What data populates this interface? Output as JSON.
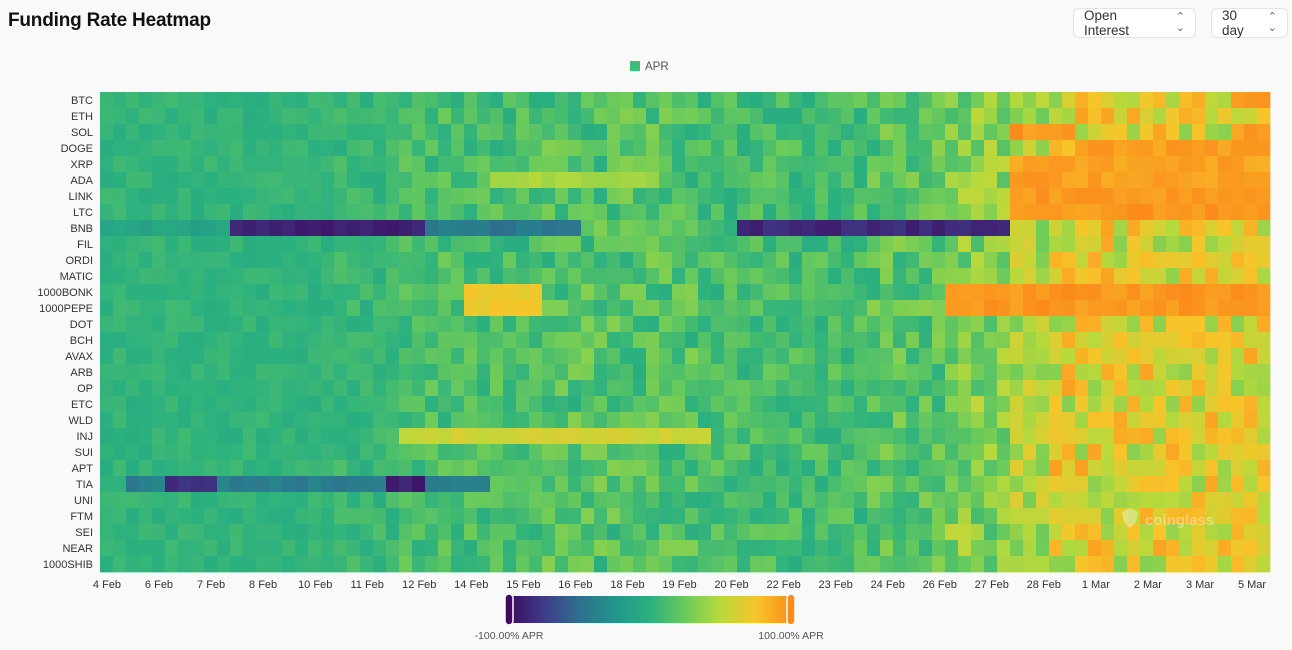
{
  "header": {
    "title": "Funding Rate Heatmap",
    "metric_select": {
      "value": "Open Interest",
      "icon": "updown-chevron-icon"
    },
    "period_select": {
      "value": "30 day",
      "icon": "updown-chevron-icon"
    }
  },
  "watermark": "coinglass",
  "chart_data": {
    "type": "heatmap",
    "legend": {
      "label": "APR",
      "color": "#3dbd7a",
      "placement": "top-center"
    },
    "y_categories": [
      "BTC",
      "ETH",
      "SOL",
      "DOGE",
      "XRP",
      "ADA",
      "LINK",
      "LTC",
      "BNB",
      "FIL",
      "ORDI",
      "MATIC",
      "1000BONK",
      "1000PEPE",
      "DOT",
      "BCH",
      "AVAX",
      "ARB",
      "OP",
      "ETC",
      "WLD",
      "INJ",
      "SUI",
      "APT",
      "TIA",
      "UNI",
      "FTM",
      "SEI",
      "NEAR",
      "1000SHIB"
    ],
    "x_tick_labels": [
      "4 Feb",
      "6 Feb",
      "7 Feb",
      "8 Feb",
      "10 Feb",
      "11 Feb",
      "12 Feb",
      "14 Feb",
      "15 Feb",
      "16 Feb",
      "18 Feb",
      "19 Feb",
      "20 Feb",
      "22 Feb",
      "23 Feb",
      "24 Feb",
      "26 Feb",
      "27 Feb",
      "28 Feb",
      "1 Mar",
      "2 Mar",
      "3 Mar",
      "5 Mar"
    ],
    "columns": 90,
    "value_unit": "APR %",
    "color_scale": {
      "min": -100,
      "max": 100,
      "min_label": "-100.00% APR",
      "max_label": "100.00% APR",
      "stops": [
        "#3e0b5e",
        "#3f3b88",
        "#2e6f8e",
        "#22968b",
        "#2bb07f",
        "#6ccb5a",
        "#b8d93c",
        "#f7c52a",
        "#fb8c1c"
      ]
    },
    "segments": [
      {
        "cols": [
          0,
          17
        ],
        "base": 3,
        "noise": 3
      },
      {
        "cols": [
          18,
          22
        ],
        "base": 6,
        "noise": 5
      },
      {
        "cols": [
          23,
          33
        ],
        "base": 12,
        "noise": 8
      },
      {
        "cols": [
          34,
          45
        ],
        "base": 16,
        "noise": 10
      },
      {
        "cols": [
          46,
          58
        ],
        "base": 11,
        "noise": 8
      },
      {
        "cols": [
          59,
          64
        ],
        "base": 18,
        "noise": 10
      },
      {
        "cols": [
          65,
          69
        ],
        "base": 32,
        "noise": 12
      },
      {
        "cols": [
          70,
          72
        ],
        "base": 46,
        "noise": 12
      },
      {
        "cols": [
          73,
          89
        ],
        "base": 62,
        "noise": 16
      }
    ],
    "overrides": [
      {
        "row": "BNB",
        "cols": [
          10,
          24
        ],
        "value": -88
      },
      {
        "row": "BNB",
        "cols": [
          25,
          36
        ],
        "value": -45
      },
      {
        "row": "BNB",
        "cols": [
          49,
          69
        ],
        "value": -85
      },
      {
        "row": "BNB",
        "cols": [
          0,
          9
        ],
        "value": -12
      },
      {
        "row": "TIA",
        "cols": [
          2,
          29
        ],
        "value": -40
      },
      {
        "row": "TIA",
        "cols": [
          5,
          8
        ],
        "value": -80
      },
      {
        "row": "TIA",
        "cols": [
          22,
          24
        ],
        "value": -90
      },
      {
        "row": "1000BONK",
        "cols": [
          28,
          33
        ],
        "value": 72
      },
      {
        "row": "1000PEPE",
        "cols": [
          28,
          33
        ],
        "value": 70
      },
      {
        "row": "INJ",
        "cols": [
          23,
          46
        ],
        "value": 58
      },
      {
        "row": "ADA",
        "cols": [
          30,
          42
        ],
        "value": 45
      },
      {
        "row": "1000BONK",
        "cols": [
          65,
          89
        ],
        "value": 95
      },
      {
        "row": "1000PEPE",
        "cols": [
          65,
          89
        ],
        "value": 95
      },
      {
        "row": "LINK",
        "cols": [
          70,
          89
        ],
        "value": 95
      },
      {
        "row": "LTC",
        "cols": [
          70,
          89
        ],
        "value": 95
      },
      {
        "row": "ADA",
        "cols": [
          70,
          89
        ],
        "value": 92
      },
      {
        "row": "SOL",
        "cols": [
          70,
          74
        ],
        "value": 95
      },
      {
        "row": "DOGE",
        "cols": [
          76,
          89
        ],
        "value": 92
      },
      {
        "row": "XRP",
        "cols": [
          70,
          89
        ],
        "value": 90
      },
      {
        "row": "SOL",
        "cols": [
          88,
          89
        ],
        "value": 95
      },
      {
        "row": "BTC",
        "cols": [
          87,
          89
        ],
        "value": 95
      }
    ]
  }
}
